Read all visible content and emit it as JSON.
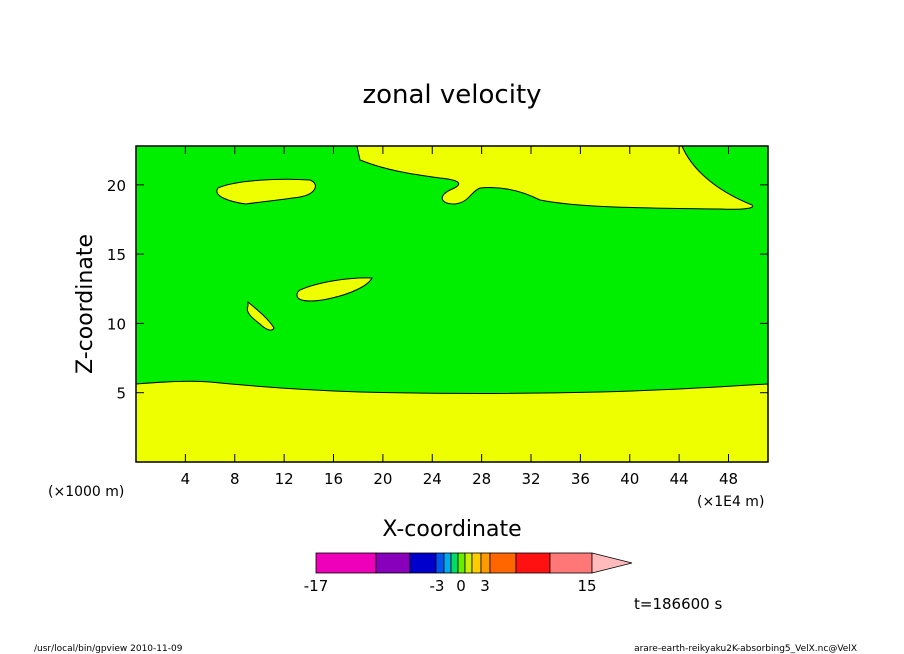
{
  "chart_data": {
    "type": "heatmap",
    "title": "zonal velocity",
    "xlabel": "X-coordinate",
    "ylabel": "Z-coordinate",
    "x_unit_left": "(×1000 m)",
    "x_unit_right": "(×1E4 m)",
    "xticks": [
      "4",
      "8",
      "12",
      "16",
      "20",
      "24",
      "28",
      "32",
      "36",
      "40",
      "44",
      "48"
    ],
    "yticks": [
      "5",
      "10",
      "15",
      "20"
    ],
    "xlim": [
      0,
      51.2
    ],
    "ylim": [
      0,
      22.8
    ],
    "colors": {
      "background_field": "#00ee00",
      "positive_region": "#eeff00"
    },
    "colorbar": {
      "labels": [
        "-17",
        "-3",
        "0",
        "3",
        "15"
      ],
      "colors": [
        "#ee00bb",
        "#8800bb",
        "#0000cc",
        "#0055ee",
        "#00aaee",
        "#00dd66",
        "#66ee00",
        "#ccee00",
        "#ffcc00",
        "#ff9900",
        "#ff6600",
        "#ff1111",
        "#ff7777",
        "#ffbbbb"
      ]
    },
    "time_label": "t=186600 s"
  },
  "footer": {
    "left": "/usr/local/bin/gpview   2010-11-09",
    "right": "arare-earth-reikyaku2K-absorbing5_VelX.nc@VelX"
  }
}
